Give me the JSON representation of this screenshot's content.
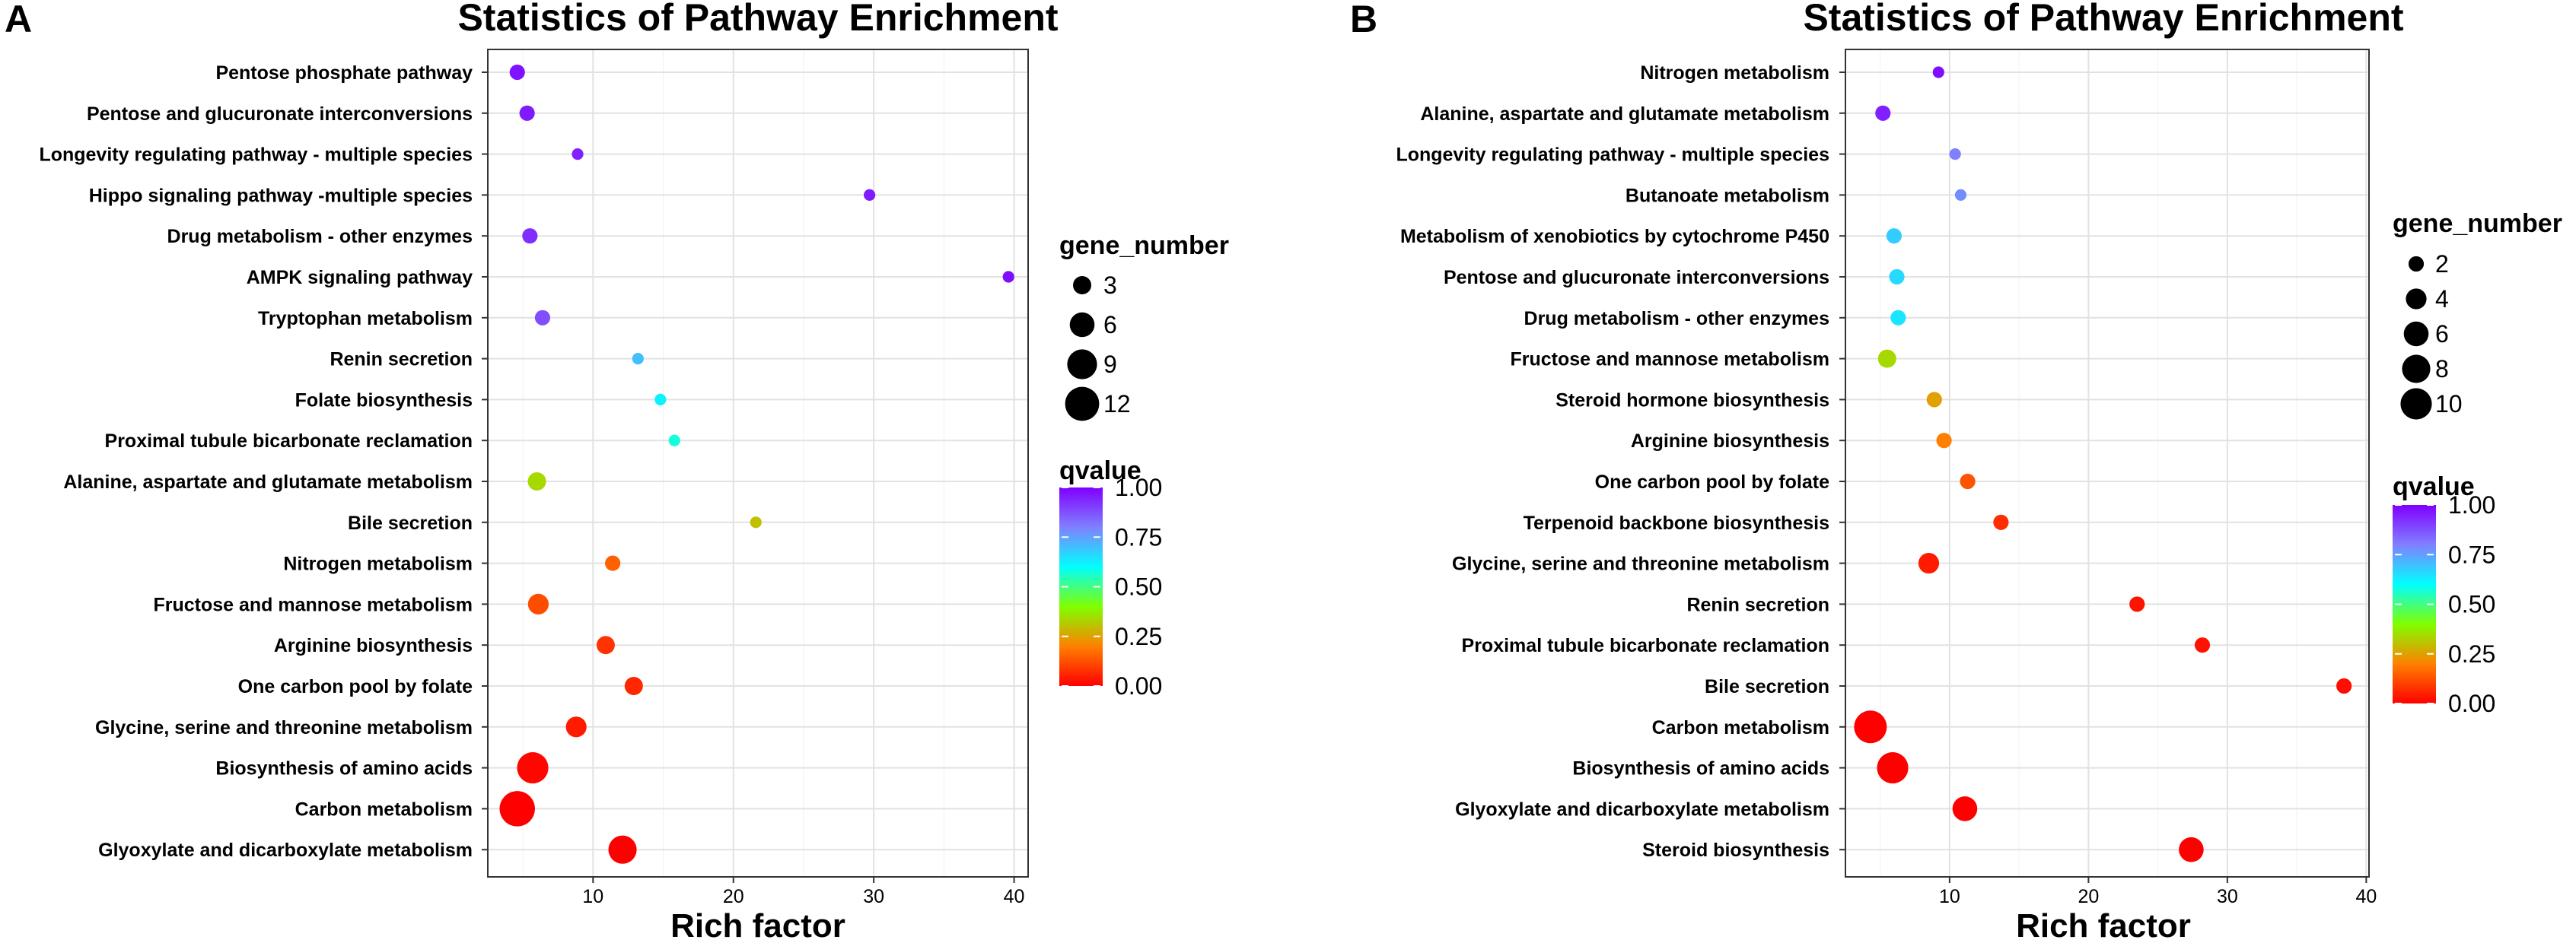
{
  "figure": {
    "color_scale": [
      "#ff0000",
      "#ff8000",
      "#80ff00",
      "#00ffff",
      "#8080ff",
      "#8000ff"
    ]
  },
  "chart_data": [
    {
      "panel": "A",
      "type": "scatter",
      "title": "Statistics of Pathway Enrichment",
      "xlabel": "Rich factor",
      "ylabel": "",
      "xlim": [
        2.5,
        41
      ],
      "xticks": [
        10,
        20,
        30,
        40
      ],
      "grid": true,
      "size_legend": {
        "title": "gene_number",
        "values": [
          3,
          6,
          9,
          12
        ]
      },
      "color_legend": {
        "title": "qvalue",
        "ticks": [
          "1.00",
          "0.75",
          "0.50",
          "0.25",
          "0.00"
        ]
      },
      "points": [
        {
          "pathway": "Pentose phosphate pathway",
          "rich_factor": 4.6,
          "gene_number": 2,
          "qvalue": 0.97
        },
        {
          "pathway": "Pentose and glucuronate interconversions",
          "rich_factor": 5.3,
          "gene_number": 2,
          "qvalue": 0.96
        },
        {
          "pathway": "Longevity regulating pathway - multiple species",
          "rich_factor": 8.9,
          "gene_number": 1,
          "qvalue": 0.95
        },
        {
          "pathway": "Hippo signaling pathway -multiple species",
          "rich_factor": 29.7,
          "gene_number": 1,
          "qvalue": 0.96
        },
        {
          "pathway": "Drug metabolism - other enzymes",
          "rich_factor": 5.5,
          "gene_number": 2,
          "qvalue": 0.93
        },
        {
          "pathway": "AMPK signaling pathway",
          "rich_factor": 39.6,
          "gene_number": 1,
          "qvalue": 0.98
        },
        {
          "pathway": "Tryptophan metabolism",
          "rich_factor": 6.4,
          "gene_number": 2,
          "qvalue": 0.88
        },
        {
          "pathway": "Renin secretion",
          "rich_factor": 13.2,
          "gene_number": 1,
          "qvalue": 0.7
        },
        {
          "pathway": "Folate biosynthesis",
          "rich_factor": 14.8,
          "gene_number": 1,
          "qvalue": 0.62
        },
        {
          "pathway": "Proximal tubule bicarbonate reclamation",
          "rich_factor": 15.8,
          "gene_number": 1,
          "qvalue": 0.57
        },
        {
          "pathway": "Alanine, aspartate and glutamate metabolism",
          "rich_factor": 6.0,
          "gene_number": 3,
          "qvalue": 0.34
        },
        {
          "pathway": "Bile secretion",
          "rich_factor": 21.6,
          "gene_number": 1,
          "qvalue": 0.3
        },
        {
          "pathway": "Nitrogen metabolism",
          "rich_factor": 11.4,
          "gene_number": 2,
          "qvalue": 0.15
        },
        {
          "pathway": "Fructose and mannose metabolism",
          "rich_factor": 6.1,
          "gene_number": 4,
          "qvalue": 0.12
        },
        {
          "pathway": "Arginine biosynthesis",
          "rich_factor": 10.9,
          "gene_number": 3,
          "qvalue": 0.08
        },
        {
          "pathway": "One carbon pool by folate",
          "rich_factor": 12.9,
          "gene_number": 3,
          "qvalue": 0.06
        },
        {
          "pathway": "Glycine, serine and threonine metabolism",
          "rich_factor": 8.8,
          "gene_number": 4,
          "qvalue": 0.04
        },
        {
          "pathway": "Biosynthesis of amino acids",
          "rich_factor": 5.7,
          "gene_number": 10,
          "qvalue": 0.01
        },
        {
          "pathway": "Carbon metabolism",
          "rich_factor": 4.6,
          "gene_number": 13,
          "qvalue": 0.0
        },
        {
          "pathway": "Glyoxylate and dicarboxylate metabolism",
          "rich_factor": 12.1,
          "gene_number": 8,
          "qvalue": 0.0
        }
      ]
    },
    {
      "panel": "B",
      "type": "scatter",
      "title": "Statistics of Pathway Enrichment",
      "xlabel": "Rich factor",
      "ylabel": "",
      "xlim": [
        2.5,
        40.2
      ],
      "xticks": [
        10,
        20,
        30,
        40
      ],
      "grid": true,
      "size_legend": {
        "title": "gene_number",
        "values": [
          2,
          4,
          6,
          8,
          10
        ]
      },
      "color_legend": {
        "title": "qvalue",
        "ticks": [
          "1.00",
          "0.75",
          "0.50",
          "0.25",
          "0.00"
        ]
      },
      "points": [
        {
          "pathway": "Nitrogen metabolism",
          "rich_factor": 9.2,
          "gene_number": 1,
          "qvalue": 0.98
        },
        {
          "pathway": "Alanine, aspartate and glutamate metabolism",
          "rich_factor": 5.2,
          "gene_number": 2,
          "qvalue": 0.95
        },
        {
          "pathway": "Longevity regulating pathway - multiple species",
          "rich_factor": 10.4,
          "gene_number": 1,
          "qvalue": 0.8
        },
        {
          "pathway": "Butanoate metabolism",
          "rich_factor": 10.8,
          "gene_number": 1,
          "qvalue": 0.78
        },
        {
          "pathway": "Metabolism of xenobiotics by cytochrome P450",
          "rich_factor": 6.0,
          "gene_number": 2,
          "qvalue": 0.68
        },
        {
          "pathway": "Pentose and glucuronate interconversions",
          "rich_factor": 6.2,
          "gene_number": 2,
          "qvalue": 0.66
        },
        {
          "pathway": "Drug metabolism - other enzymes",
          "rich_factor": 6.3,
          "gene_number": 2,
          "qvalue": 0.64
        },
        {
          "pathway": "Fructose and mannose metabolism",
          "rich_factor": 5.5,
          "gene_number": 3,
          "qvalue": 0.34
        },
        {
          "pathway": "Steroid hormone biosynthesis",
          "rich_factor": 8.9,
          "gene_number": 2,
          "qvalue": 0.25
        },
        {
          "pathway": "Arginine biosynthesis",
          "rich_factor": 9.6,
          "gene_number": 2,
          "qvalue": 0.2
        },
        {
          "pathway": "One carbon pool by folate",
          "rich_factor": 11.3,
          "gene_number": 2,
          "qvalue": 0.13
        },
        {
          "pathway": "Terpenoid backbone biosynthesis",
          "rich_factor": 13.7,
          "gene_number": 2,
          "qvalue": 0.07
        },
        {
          "pathway": "Glycine, serine and threonine metabolism",
          "rich_factor": 8.5,
          "gene_number": 4,
          "qvalue": 0.04
        },
        {
          "pathway": "Renin secretion",
          "rich_factor": 23.5,
          "gene_number": 2,
          "qvalue": 0.03
        },
        {
          "pathway": "Proximal tubule bicarbonate reclamation",
          "rich_factor": 28.2,
          "gene_number": 2,
          "qvalue": 0.03
        },
        {
          "pathway": "Bile secretion",
          "rich_factor": 38.4,
          "gene_number": 2,
          "qvalue": 0.02
        },
        {
          "pathway": "Carbon metabolism",
          "rich_factor": 4.3,
          "gene_number": 11,
          "qvalue": 0.0
        },
        {
          "pathway": "Biosynthesis of amino acids",
          "rich_factor": 5.9,
          "gene_number": 10,
          "qvalue": 0.0
        },
        {
          "pathway": "Glyoxylate and dicarboxylate metabolism",
          "rich_factor": 11.1,
          "gene_number": 6,
          "qvalue": 0.0
        },
        {
          "pathway": "Steroid biosynthesis",
          "rich_factor": 27.4,
          "gene_number": 6,
          "qvalue": 0.0
        }
      ]
    }
  ]
}
